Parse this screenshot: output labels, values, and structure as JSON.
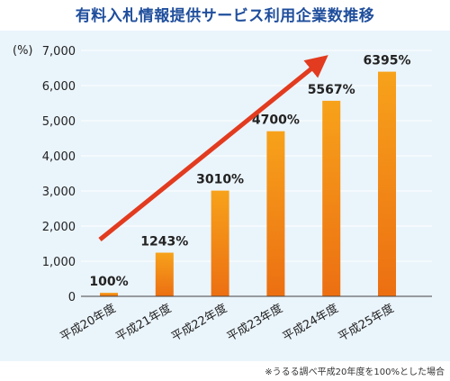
{
  "title": "有料入札情報提供サービス利用企業数推移",
  "footnote": "※うるる調べ平成20年度を100%とした場合",
  "colors": {
    "title": "#1f4e9c",
    "panel_bg": "#eaf4fb",
    "bar_top": "#f7a21b",
    "bar_bottom": "#ec6f12",
    "arrow": "#e23b1f",
    "axis": "#444444",
    "grid": "#ffffff"
  },
  "chart_data": {
    "type": "bar",
    "unit_label": "(%)",
    "categories": [
      "平成20年度",
      "平成21年度",
      "平成22年度",
      "平成23年度",
      "平成24年度",
      "平成25年度"
    ],
    "values": [
      100,
      1243,
      3010,
      4700,
      5567,
      6395
    ],
    "data_labels": [
      "100%",
      "1243%",
      "3010%",
      "4700%",
      "5567%",
      "6395%"
    ],
    "ylim": [
      0,
      7000
    ],
    "yticks": [
      0,
      1000,
      2000,
      3000,
      4000,
      5000,
      6000,
      7000
    ],
    "ytick_labels": [
      "0",
      "1,000",
      "2,000",
      "3,000",
      "4,000",
      "5,000",
      "6,000",
      "7,000"
    ],
    "trend_arrow": true
  }
}
